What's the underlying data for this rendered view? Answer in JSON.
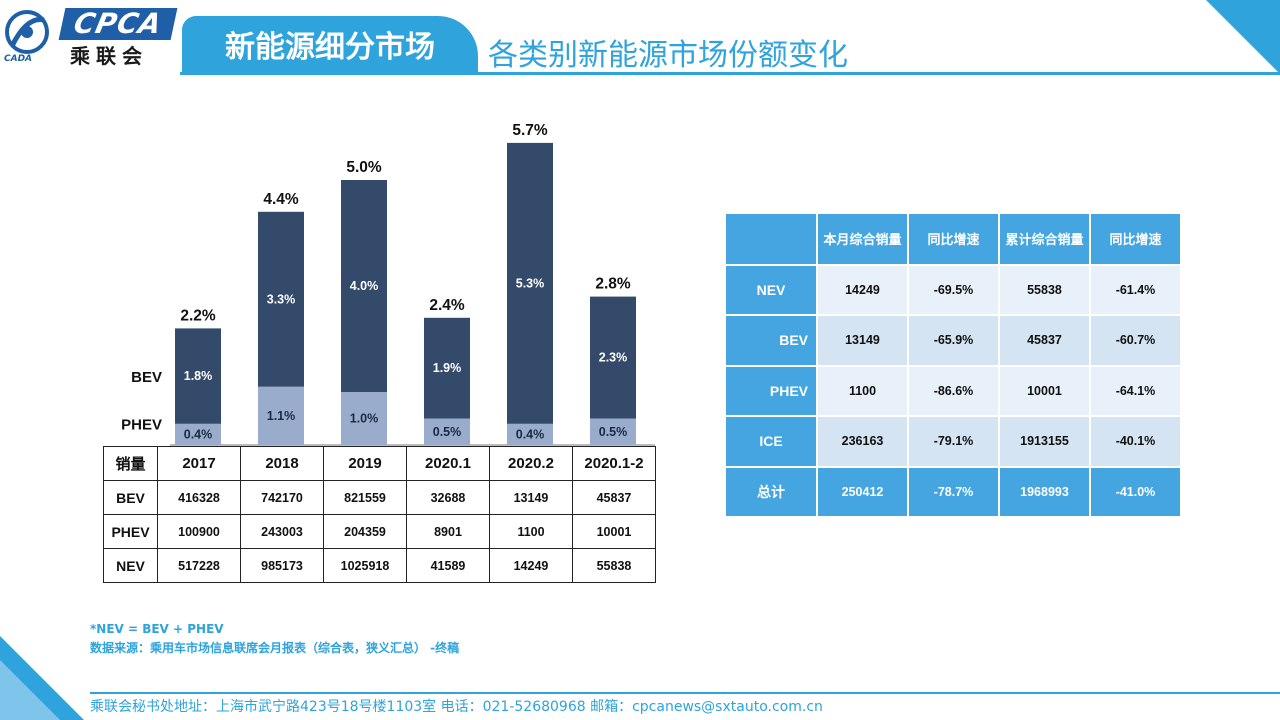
{
  "header": {
    "logo_text": "CPCA",
    "logo_cn": "乘联会",
    "logo_sub": "CADA",
    "section": "新能源细分市场",
    "title": "各类别新能源市场份额变化"
  },
  "chart_data": {
    "type": "bar",
    "stacked": true,
    "categories": [
      "2017",
      "2018",
      "2019",
      "2020.1",
      "2020.2",
      "2020.1-2"
    ],
    "series": [
      {
        "name": "PHEV",
        "values": [
          0.4,
          1.1,
          1.0,
          0.5,
          0.4,
          0.5
        ],
        "labels": [
          "0.4%",
          "1.1%",
          "1.0%",
          "0.5%",
          "0.4%",
          "0.5%"
        ],
        "color": "#9aaccb"
      },
      {
        "name": "BEV",
        "values": [
          1.8,
          3.3,
          4.0,
          1.9,
          5.3,
          2.3
        ],
        "labels": [
          "1.8%",
          "3.3%",
          "4.0%",
          "1.9%",
          "5.3%",
          "2.3%"
        ],
        "color": "#344a6b"
      }
    ],
    "totals": [
      "2.2%",
      "4.4%",
      "5.0%",
      "2.4%",
      "5.7%",
      "2.8%"
    ],
    "total_values": [
      2.2,
      4.4,
      5.0,
      2.4,
      5.7,
      2.8
    ],
    "ylim": [
      0,
      6
    ],
    "legend_side": "left",
    "grid": false
  },
  "volume_table": {
    "header": [
      "销量",
      "2017",
      "2018",
      "2019",
      "2020.1",
      "2020.2",
      "2020.1-2"
    ],
    "rows": [
      [
        "BEV",
        "416328",
        "742170",
        "821559",
        "32688",
        "13149",
        "45837"
      ],
      [
        "PHEV",
        "100900",
        "243003",
        "204359",
        "8901",
        "1100",
        "10001"
      ],
      [
        "NEV",
        "517228",
        "985173",
        "1025918",
        "41589",
        "14249",
        "55838"
      ]
    ]
  },
  "summary_table": {
    "header": [
      "",
      "本月综合销量",
      "同比增速",
      "累计综合销量",
      "同比增速"
    ],
    "rows": [
      [
        "NEV",
        "14249",
        "-69.5%",
        "55838",
        "-61.4%"
      ],
      [
        "BEV",
        "13149",
        "-65.9%",
        "45837",
        "-60.7%"
      ],
      [
        "PHEV",
        "1100",
        "-86.6%",
        "10001",
        "-64.1%"
      ],
      [
        "ICE",
        "236163",
        "-79.1%",
        "1913155",
        "-40.1%"
      ],
      [
        "总计",
        "250412",
        "-78.7%",
        "1968993",
        "-41.0%"
      ]
    ]
  },
  "notes": {
    "formula": "*NEV = BEV + PHEV",
    "source": "数据来源：乘用车市场信息联席会月报表（综合表，狭义汇总） -终稿"
  },
  "footer": {
    "text": "乘联会秘书处地址：上海市武宁路423号18号楼1103室  电话：021-52680968   邮箱：cpcanews@sxtauto.com.cn"
  },
  "colors": {
    "accent": "#2ea3dc",
    "bev": "#344a6b",
    "phev": "#9aaccb",
    "table_head": "#45a5e1"
  }
}
